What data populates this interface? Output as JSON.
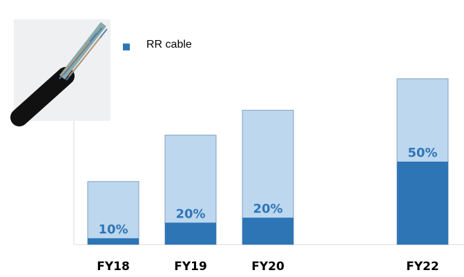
{
  "chart_data": {
    "type": "bar",
    "categories": [
      "FY18",
      "FY19",
      "FY20",
      null,
      "FY22"
    ],
    "totals": [
      38,
      66,
      81,
      null,
      100
    ],
    "total_color": "#bdd7ee",
    "series": [
      {
        "name": "RR cable",
        "color": "#2e75b6",
        "values": [
          10,
          20,
          20,
          null,
          50
        ],
        "value_labels": [
          "10%",
          "20%",
          "20%",
          null,
          "50%"
        ]
      }
    ],
    "ylim": [
      0,
      100
    ]
  }
}
